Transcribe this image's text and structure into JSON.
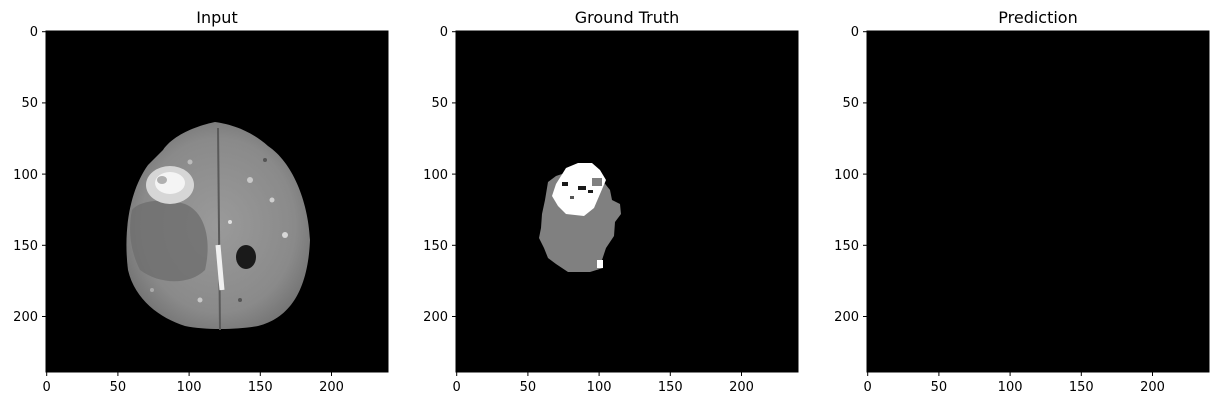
{
  "figure": {
    "panels": [
      {
        "title": "Input"
      },
      {
        "title": "Ground Truth"
      },
      {
        "title": "Prediction"
      }
    ],
    "axes": {
      "x_ticks": [
        "0",
        "50",
        "100",
        "150",
        "200"
      ],
      "y_ticks": [
        "0",
        "50",
        "100",
        "150",
        "200"
      ]
    },
    "colors": {
      "image_background": "#000000",
      "mask_gray": "#808080",
      "mask_white": "#ffffff"
    }
  }
}
